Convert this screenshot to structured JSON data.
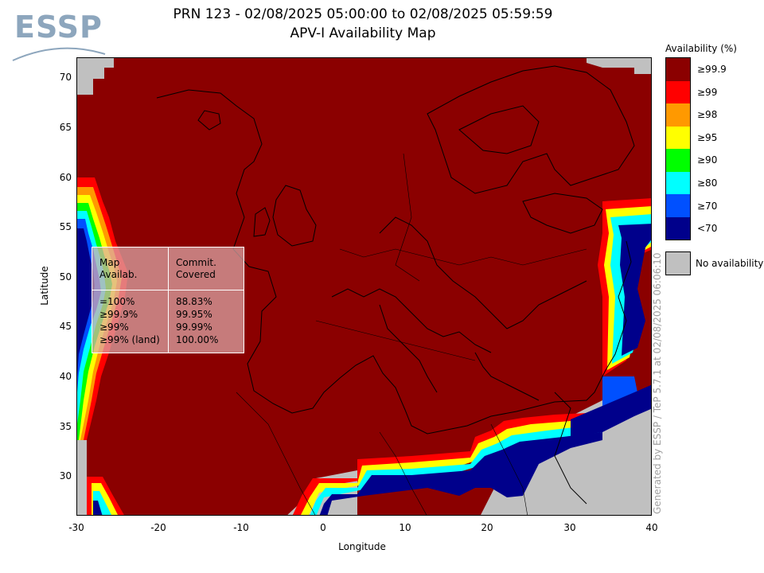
{
  "header": {
    "title_line1": "PRN 123 - 02/08/2025 05:00:00 to 02/08/2025 05:59:59",
    "title_line2": "APV-I Availability Map",
    "logo_text": "ESSP"
  },
  "axes": {
    "xlabel": "Longitude",
    "ylabel": "Latitude",
    "xticks": [
      "-30",
      "-20",
      "-10",
      "0",
      "10",
      "20",
      "30",
      "40"
    ],
    "yticks": [
      "70",
      "65",
      "60",
      "55",
      "50",
      "45",
      "40",
      "35",
      "30"
    ],
    "xlim": [
      -30,
      40
    ],
    "ylim": [
      26,
      72
    ]
  },
  "legend": {
    "title": "Availability (%)",
    "items": [
      {
        "label": "≥99.9",
        "color": "#8b0000"
      },
      {
        "label": "≥99",
        "color": "#ff0000"
      },
      {
        "label": "≥98",
        "color": "#ff9900"
      },
      {
        "label": "≥95",
        "color": "#ffff00"
      },
      {
        "label": "≥90",
        "color": "#00ff00"
      },
      {
        "label": "≥80",
        "color": "#00ffff"
      },
      {
        "label": "≥70",
        "color": "#0050ff"
      },
      {
        "label": "<70",
        "color": "#00008b"
      }
    ],
    "no_availability_label": "No availability",
    "no_availability_color": "#c0c0c0"
  },
  "stats_table": {
    "header_left": "Map\nAvailab.",
    "header_right": "Commit.\nCovered",
    "rows": [
      {
        "map": "=100%",
        "covered": "88.83%"
      },
      {
        "map": "≥99.9%",
        "covered": "99.95%"
      },
      {
        "map": "≥99%",
        "covered": "99.99%"
      },
      {
        "map": "≥99% (land)",
        "covered": "100.00%"
      }
    ]
  },
  "footer": "Generated by ESSP / TeP 5.7.1 at 02/08/2025 06:06:10"
}
